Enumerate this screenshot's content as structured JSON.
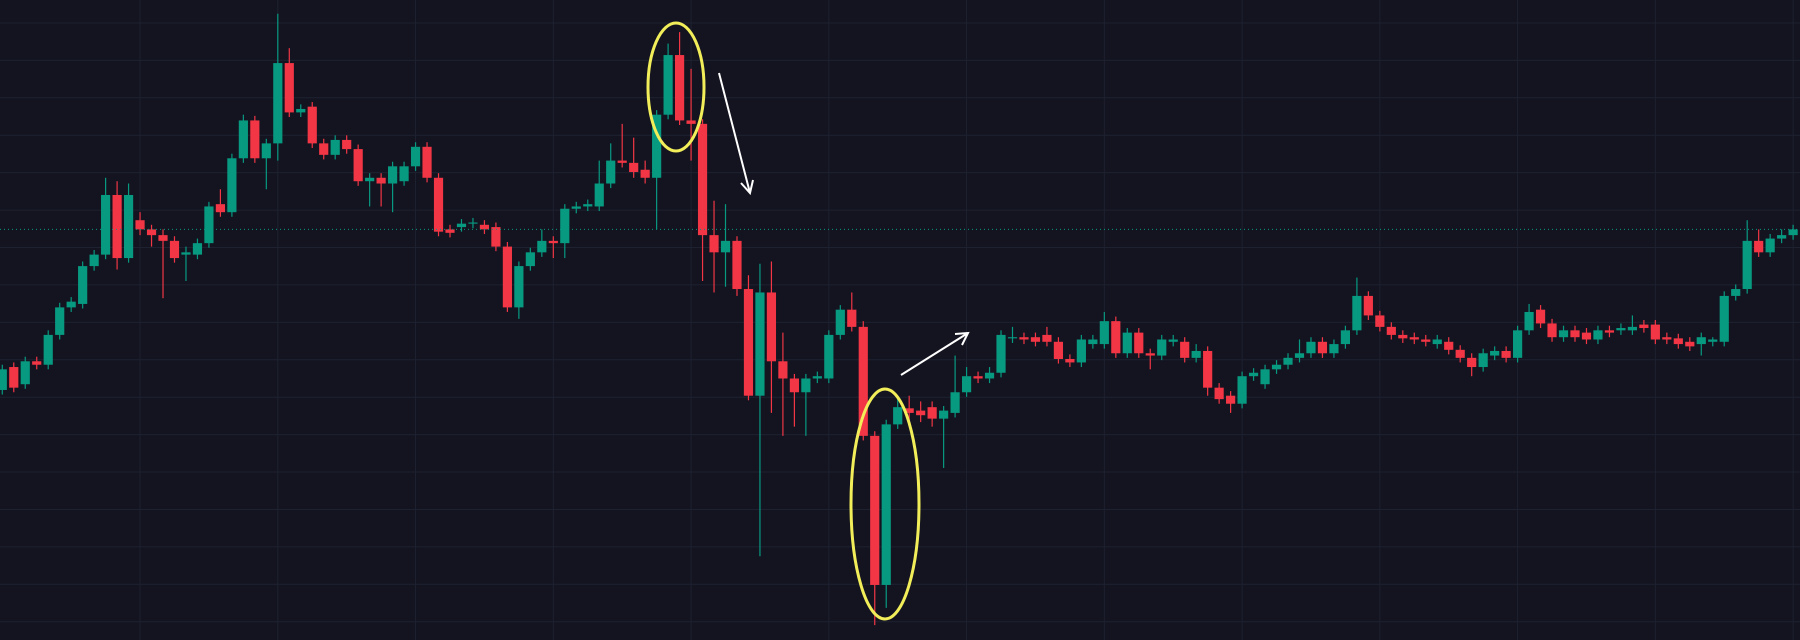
{
  "chart_data": {
    "type": "candlestick",
    "open": [
      260,
      280,
      265,
      285,
      282,
      308,
      332,
      335,
      368,
      378,
      430,
      375,
      408,
      400,
      395,
      390,
      378,
      378,
      388,
      422,
      415,
      462,
      495,
      462,
      475,
      545,
      502,
      507,
      475,
      465,
      478,
      470,
      442,
      445,
      440,
      442,
      455,
      472,
      445,
      400,
      402,
      405,
      404,
      402,
      385,
      332,
      368,
      380,
      390,
      388,
      418,
      420,
      420,
      440,
      460,
      458,
      452,
      445,
      500,
      552,
      495,
      492,
      395,
      380,
      390,
      348,
      255,
      345,
      285,
      270,
      258,
      270,
      270,
      308,
      330,
      315,
      220,
      90,
      230,
      244,
      242,
      245,
      235,
      240,
      258,
      272,
      270,
      275,
      305,
      306,
      306,
      308,
      302,
      287,
      284,
      300,
      300,
      320,
      292,
      310,
      292,
      290,
      302,
      302,
      288,
      294,
      262,
      255,
      248,
      272,
      265,
      278,
      282,
      288,
      292,
      302,
      292,
      300,
      312,
      342,
      325,
      315,
      308,
      306,
      304,
      300,
      302,
      295,
      288,
      280,
      290,
      294,
      288,
      312,
      330,
      318,
      306,
      312,
      310,
      304,
      312,
      312,
      312,
      317,
      317,
      306,
      305,
      302,
      300,
      302,
      302,
      342,
      348,
      390,
      380,
      392,
      395
    ],
    "high": [
      282,
      284,
      289,
      289,
      312,
      336,
      341,
      372,
      382,
      445,
      442,
      440,
      415,
      404,
      400,
      394,
      385,
      392,
      424,
      435,
      466,
      500,
      499,
      479,
      588,
      558,
      509,
      511,
      479,
      482,
      482,
      474,
      449,
      449,
      459,
      459,
      476,
      476,
      449,
      404,
      409,
      410,
      408,
      406,
      389,
      372,
      384,
      400,
      394,
      422,
      424,
      426,
      460,
      475,
      492,
      480,
      460,
      504,
      562,
      572,
      540,
      496,
      425,
      422,
      394,
      360,
      370,
      372,
      310,
      274,
      274,
      276,
      312,
      334,
      345,
      320,
      224,
      234,
      255,
      255,
      250,
      250,
      246,
      290,
      280,
      276,
      280,
      312,
      315,
      310,
      310,
      315,
      306,
      291,
      308,
      308,
      328,
      324,
      314,
      314,
      296,
      308,
      308,
      306,
      300,
      298,
      266,
      259,
      276,
      279,
      282,
      286,
      292,
      304,
      306,
      306,
      304,
      316,
      358,
      346,
      329,
      319,
      312,
      310,
      308,
      308,
      306,
      299,
      292,
      296,
      298,
      298,
      316,
      335,
      334,
      322,
      316,
      316,
      314,
      316,
      316,
      318,
      325,
      321,
      321,
      310,
      309,
      306,
      310,
      306,
      346,
      352,
      408,
      400,
      396,
      400,
      404
    ],
    "low": [
      256,
      258,
      261,
      278,
      278,
      304,
      328,
      331,
      364,
      374,
      365,
      371,
      395,
      385,
      340,
      371,
      355,
      374,
      384,
      411,
      411,
      458,
      458,
      435,
      460,
      498,
      498,
      471,
      461,
      461,
      466,
      438,
      420,
      420,
      415,
      438,
      451,
      441,
      394,
      393,
      398,
      401,
      396,
      381,
      328,
      322,
      364,
      376,
      375,
      375,
      414,
      416,
      416,
      436,
      454,
      445,
      440,
      400,
      496,
      491,
      460,
      355,
      345,
      350,
      342,
      251,
      115,
      240,
      220,
      228,
      220,
      266,
      266,
      304,
      311,
      216,
      55,
      70,
      226,
      232,
      232,
      228,
      192,
      236,
      254,
      266,
      266,
      271,
      301,
      300,
      298,
      298,
      283,
      280,
      280,
      296,
      296,
      288,
      288,
      288,
      278,
      286,
      298,
      284,
      284,
      255,
      248,
      240,
      244,
      268,
      261,
      274,
      278,
      284,
      288,
      288,
      288,
      296,
      308,
      321,
      311,
      304,
      301,
      300,
      298,
      296,
      291,
      284,
      272,
      276,
      286,
      284,
      284,
      308,
      314,
      302,
      302,
      302,
      300,
      300,
      306,
      308,
      308,
      310,
      300,
      300,
      296,
      294,
      290,
      298,
      298,
      338,
      344,
      376,
      376,
      388,
      391
    ],
    "close": [
      278,
      262,
      285,
      282,
      308,
      332,
      337,
      368,
      378,
      430,
      375,
      430,
      400,
      395,
      390,
      375,
      380,
      388,
      420,
      415,
      462,
      495,
      462,
      475,
      545,
      502,
      505,
      475,
      465,
      478,
      470,
      442,
      445,
      440,
      455,
      455,
      472,
      445,
      398,
      397,
      405,
      406,
      400,
      385,
      332,
      368,
      380,
      390,
      388,
      418,
      420,
      422,
      440,
      460,
      458,
      450,
      445,
      500,
      552,
      495,
      492,
      395,
      380,
      390,
      348,
      255,
      345,
      285,
      270,
      258,
      270,
      272,
      308,
      330,
      315,
      220,
      90,
      230,
      245,
      240,
      238,
      235,
      242,
      258,
      272,
      270,
      275,
      308,
      306,
      304,
      302,
      302,
      287,
      284,
      304,
      304,
      320,
      292,
      310,
      292,
      290,
      304,
      304,
      288,
      294,
      262,
      252,
      248,
      272,
      275,
      278,
      282,
      288,
      292,
      302,
      292,
      300,
      312,
      342,
      325,
      315,
      308,
      305,
      304,
      302,
      304,
      295,
      288,
      280,
      292,
      294,
      288,
      312,
      328,
      318,
      306,
      312,
      306,
      304,
      312,
      310,
      314,
      315,
      314,
      304,
      304,
      300,
      298,
      306,
      304,
      342,
      348,
      390,
      380,
      392,
      395,
      400
    ],
    "up_color": "#089981",
    "down_color": "#f23645",
    "ylim": [
      42,
      600
    ],
    "grid": true
  }
}
